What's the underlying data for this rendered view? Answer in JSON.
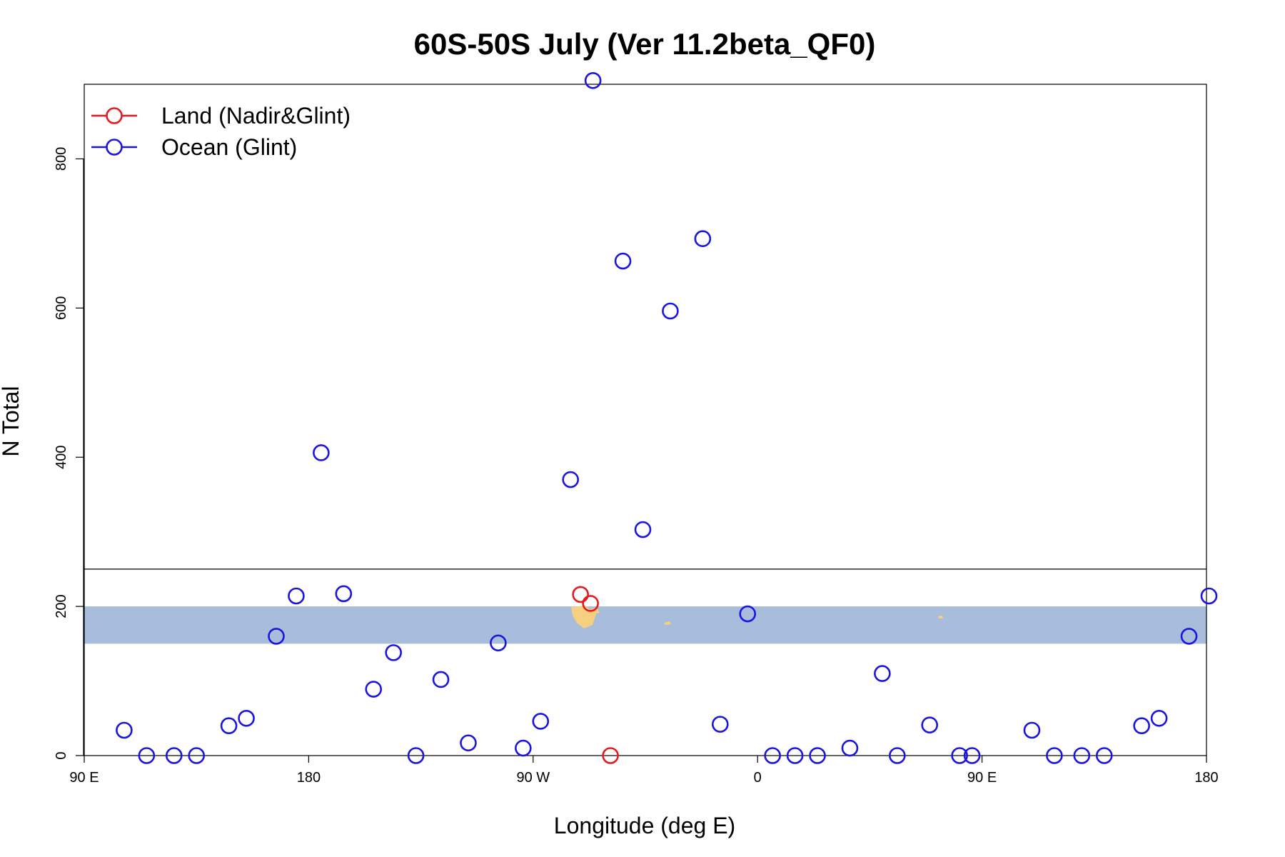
{
  "chart_data": {
    "type": "scatter",
    "title": "60S-50S July (Ver 11.2beta_QF0)",
    "xlabel": "Longitude (deg E)",
    "ylabel": "N Total",
    "xlim": [
      90,
      540
    ],
    "ylim": [
      0,
      900
    ],
    "x_ticks": [
      {
        "value": 90,
        "label": "90 E"
      },
      {
        "value": 180,
        "label": "180"
      },
      {
        "value": 270,
        "label": "90 W"
      },
      {
        "value": 360,
        "label": "0"
      },
      {
        "value": 450,
        "label": "90 E"
      },
      {
        "value": 540,
        "label": "180"
      }
    ],
    "y_ticks": [
      {
        "value": 0,
        "label": "0"
      },
      {
        "value": 200,
        "label": "200"
      },
      {
        "value": 400,
        "label": "400"
      },
      {
        "value": 600,
        "label": "600"
      },
      {
        "value": 800,
        "label": "800"
      }
    ],
    "reference_line": {
      "y": 250
    },
    "band": {
      "y_min": 150,
      "y_max": 200,
      "color": "#a7bddb"
    },
    "land_patches_color": "#f5d080",
    "legend": {
      "placement": "top-left"
    },
    "series": [
      {
        "name": "Land (Nadir&Glint)",
        "color": "#e8191c",
        "points": [
          [
            289,
            216
          ],
          [
            293,
            204
          ],
          [
            301,
            0
          ]
        ]
      },
      {
        "name": "Ocean (Glint)",
        "color": "#1c14e0",
        "points": [
          [
            106,
            34
          ],
          [
            115,
            0
          ],
          [
            126,
            0
          ],
          [
            135,
            0
          ],
          [
            148,
            40
          ],
          [
            155,
            50
          ],
          [
            167,
            160
          ],
          [
            175,
            214
          ],
          [
            185,
            406
          ],
          [
            194,
            217
          ],
          [
            206,
            89
          ],
          [
            214,
            138
          ],
          [
            223,
            0
          ],
          [
            233,
            102
          ],
          [
            244,
            17
          ],
          [
            256,
            151
          ],
          [
            266,
            10
          ],
          [
            273,
            46
          ],
          [
            285,
            370
          ],
          [
            294,
            905
          ],
          [
            306,
            663
          ],
          [
            314,
            303
          ],
          [
            325,
            596
          ],
          [
            338,
            693
          ],
          [
            345,
            42
          ],
          [
            356,
            190
          ],
          [
            366,
            0
          ],
          [
            375,
            0
          ],
          [
            384,
            0
          ],
          [
            397,
            10
          ],
          [
            410,
            110
          ],
          [
            416,
            0
          ],
          [
            429,
            41
          ],
          [
            441,
            0
          ],
          [
            446,
            0
          ],
          [
            470,
            34
          ],
          [
            479,
            0
          ],
          [
            490,
            0
          ],
          [
            499,
            0
          ],
          [
            514,
            40
          ],
          [
            521,
            50
          ],
          [
            533,
            160
          ],
          [
            541,
            214
          ]
        ]
      }
    ]
  }
}
